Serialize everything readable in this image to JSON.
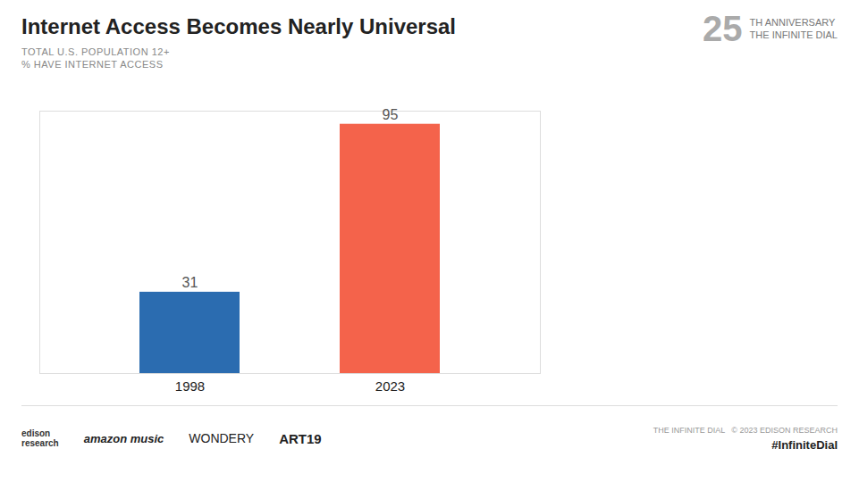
{
  "chart_data": {
    "type": "bar",
    "title": "Internet Access Becomes Nearly Universal",
    "subtitle": "TOTAL U.S. POPULATION 12+",
    "ylabel": "% HAVE INTERNET ACCESS",
    "categories": [
      "1998",
      "2023"
    ],
    "values": [
      31,
      95
    ],
    "colors": [
      "#2B6CB0",
      "#F4634B"
    ],
    "ylim": [
      0,
      100
    ],
    "grid": false,
    "data_labels": true,
    "tick_labels": "x",
    "annotations": [
      "edison\nresearch",
      "amazon music",
      "WONDERY",
      "ART19",
      "THE INFINITE DIAL   © 2023 EDISON RESEARCH",
      "#InfiniteDial",
      "25",
      "TH ANNIVERSARY",
      "THE INFINITE DIAL"
    ]
  }
}
